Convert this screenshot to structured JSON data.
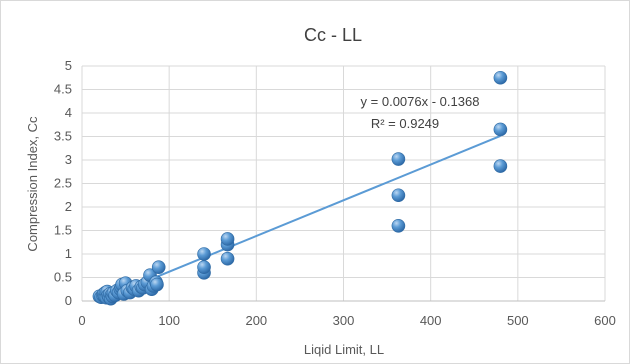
{
  "chart_data": {
    "type": "scatter",
    "title": "Cc - LL",
    "xlabel": "Liqid Limit, LL",
    "ylabel": "Compression Index, Cc",
    "xlim": [
      0,
      600
    ],
    "ylim": [
      0,
      5
    ],
    "xticks": [
      0,
      100,
      200,
      300,
      400,
      500,
      600
    ],
    "yticks": [
      0,
      0.5,
      1,
      1.5,
      2,
      2.5,
      3,
      3.5,
      4,
      4.5,
      5
    ],
    "xtick_labels": [
      "0",
      "100",
      "200",
      "300",
      "400",
      "500",
      "600"
    ],
    "ytick_labels": [
      "0",
      "0.5",
      "1",
      "1.5",
      "2",
      "2.5",
      "3",
      "3.5",
      "4",
      "4.5",
      "5"
    ],
    "grid": true,
    "legend": "none",
    "marker_color": "#5b9bd5",
    "trendline_color": "#5b9bd5",
    "equation": "y = 0.0076x - 0.1368",
    "r_squared": "R² = 0.9249",
    "trendline": {
      "slope": 0.0076,
      "intercept": -0.1368,
      "x_range": [
        20,
        480
      ]
    },
    "series": [
      {
        "x": [
          20,
          22,
          24,
          25,
          26,
          27,
          28,
          29,
          30,
          31,
          32,
          33,
          34,
          35,
          36,
          38,
          40,
          42,
          44,
          45,
          46,
          48,
          50,
          52,
          55,
          58,
          60,
          62,
          65,
          68,
          70,
          72,
          75,
          78,
          80,
          82,
          85,
          86,
          88,
          140,
          140,
          140,
          167,
          167,
          167,
          363,
          363,
          363,
          480,
          480,
          480
        ],
        "y": [
          0.1,
          0.08,
          0.12,
          0.15,
          0.1,
          0.18,
          0.07,
          0.2,
          0.12,
          0.09,
          0.15,
          0.05,
          0.13,
          0.1,
          0.17,
          0.12,
          0.22,
          0.18,
          0.25,
          0.3,
          0.35,
          0.15,
          0.38,
          0.22,
          0.18,
          0.28,
          0.25,
          0.32,
          0.22,
          0.3,
          0.28,
          0.35,
          0.4,
          0.55,
          0.25,
          0.32,
          0.4,
          0.35,
          0.72,
          0.6,
          0.72,
          1.0,
          0.9,
          1.2,
          1.32,
          1.6,
          2.25,
          3.02,
          2.87,
          3.65,
          4.75
        ]
      }
    ]
  }
}
